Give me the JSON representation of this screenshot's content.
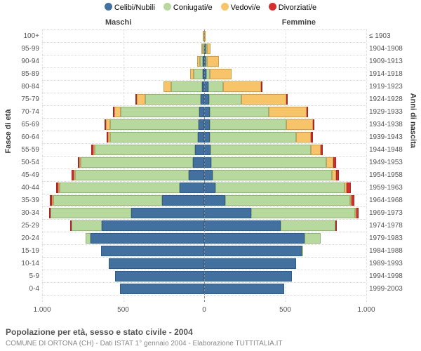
{
  "type": "population-pyramid",
  "legend": [
    {
      "label": "Celibi/Nubili",
      "color": "#42709f"
    },
    {
      "label": "Coniugati/e",
      "color": "#b7d99d"
    },
    {
      "label": "Vedovi/e",
      "color": "#f7c469"
    },
    {
      "label": "Divorziati/e",
      "color": "#d32f2f"
    }
  ],
  "header_male": "Maschi",
  "header_female": "Femmine",
  "ylabel_left": "Fasce di età",
  "ylabel_right": "Anni di nascita",
  "title": "Popolazione per età, sesso e stato civile - 2004",
  "subtitle": "COMUNE DI ORTONA (CH) - Dati ISTAT 1° gennaio 2004 - Elaborazione TUTTITALIA.IT",
  "x_max": 1000,
  "x_ticks": [
    1000,
    500,
    0,
    500,
    1000
  ],
  "x_tick_labels": [
    "1.000",
    "500",
    "0",
    "500",
    "1.000"
  ],
  "grid_positions": [
    0,
    0.25,
    0.5,
    0.75,
    1.0
  ],
  "colors": {
    "celibi": "#42709f",
    "coniugati": "#b7d99d",
    "vedovi": "#f7c469",
    "divorziati": "#d32f2f",
    "grid": "#e0e0e0",
    "bg": "#ffffff",
    "text": "#555555"
  },
  "rows": [
    {
      "age": "100+",
      "year": "≤ 1903",
      "m": {
        "cel": 0,
        "con": 0,
        "ved": 2,
        "div": 0
      },
      "f": {
        "cel": 0,
        "con": 0,
        "ved": 3,
        "div": 0
      }
    },
    {
      "age": "95-99",
      "year": "1904-1908",
      "m": {
        "cel": 0,
        "con": 2,
        "ved": 5,
        "div": 0
      },
      "f": {
        "cel": 2,
        "con": 1,
        "ved": 20,
        "div": 0
      }
    },
    {
      "age": "90-94",
      "year": "1909-1913",
      "m": {
        "cel": 3,
        "con": 18,
        "ved": 18,
        "div": 0
      },
      "f": {
        "cel": 5,
        "con": 8,
        "ved": 75,
        "div": 0
      }
    },
    {
      "age": "85-89",
      "year": "1914-1918",
      "m": {
        "cel": 8,
        "con": 55,
        "ved": 25,
        "div": 0
      },
      "f": {
        "cel": 12,
        "con": 23,
        "ved": 135,
        "div": 0
      }
    },
    {
      "age": "80-84",
      "year": "1919-1923",
      "m": {
        "cel": 15,
        "con": 190,
        "ved": 48,
        "div": 0
      },
      "f": {
        "cel": 25,
        "con": 90,
        "ved": 235,
        "div": 2
      }
    },
    {
      "age": "75-79",
      "year": "1924-1928",
      "m": {
        "cel": 22,
        "con": 340,
        "ved": 55,
        "div": 2
      },
      "f": {
        "cel": 30,
        "con": 200,
        "ved": 275,
        "div": 5
      }
    },
    {
      "age": "70-74",
      "year": "1929-1933",
      "m": {
        "cel": 30,
        "con": 485,
        "ved": 40,
        "div": 5
      },
      "f": {
        "cel": 35,
        "con": 365,
        "ved": 230,
        "div": 8
      }
    },
    {
      "age": "65-69",
      "year": "1934-1938",
      "m": {
        "cel": 35,
        "con": 545,
        "ved": 25,
        "div": 5
      },
      "f": {
        "cel": 35,
        "con": 470,
        "ved": 165,
        "div": 10
      }
    },
    {
      "age": "60-64",
      "year": "1939-1943",
      "m": {
        "cel": 40,
        "con": 540,
        "ved": 15,
        "div": 8
      },
      "f": {
        "cel": 35,
        "con": 530,
        "ved": 95,
        "div": 10
      }
    },
    {
      "age": "55-59",
      "year": "1944-1948",
      "m": {
        "cel": 55,
        "con": 620,
        "ved": 10,
        "div": 10
      },
      "f": {
        "cel": 40,
        "con": 620,
        "ved": 60,
        "div": 12
      }
    },
    {
      "age": "50-54",
      "year": "1949-1953",
      "m": {
        "cel": 70,
        "con": 690,
        "ved": 8,
        "div": 12
      },
      "f": {
        "cel": 45,
        "con": 710,
        "ved": 42,
        "div": 15
      }
    },
    {
      "age": "45-49",
      "year": "1954-1958",
      "m": {
        "cel": 95,
        "con": 700,
        "ved": 5,
        "div": 15
      },
      "f": {
        "cel": 50,
        "con": 740,
        "ved": 25,
        "div": 18
      }
    },
    {
      "age": "40-44",
      "year": "1959-1963",
      "m": {
        "cel": 150,
        "con": 740,
        "ved": 3,
        "div": 15
      },
      "f": {
        "cel": 70,
        "con": 795,
        "ved": 15,
        "div": 25
      }
    },
    {
      "age": "35-39",
      "year": "1964-1968",
      "m": {
        "cel": 260,
        "con": 670,
        "ved": 2,
        "div": 12
      },
      "f": {
        "cel": 130,
        "con": 770,
        "ved": 8,
        "div": 18
      }
    },
    {
      "age": "30-34",
      "year": "1969-1973",
      "m": {
        "cel": 450,
        "con": 500,
        "ved": 0,
        "div": 8
      },
      "f": {
        "cel": 290,
        "con": 640,
        "ved": 3,
        "div": 12
      }
    },
    {
      "age": "25-29",
      "year": "1974-1978",
      "m": {
        "cel": 630,
        "con": 190,
        "ved": 0,
        "div": 2
      },
      "f": {
        "cel": 470,
        "con": 340,
        "ved": 0,
        "div": 5
      }
    },
    {
      "age": "20-24",
      "year": "1979-1983",
      "m": {
        "cel": 700,
        "con": 30,
        "ved": 0,
        "div": 0
      },
      "f": {
        "cel": 620,
        "con": 100,
        "ved": 0,
        "div": 0
      }
    },
    {
      "age": "15-19",
      "year": "1984-1988",
      "m": {
        "cel": 635,
        "con": 0,
        "ved": 0,
        "div": 0
      },
      "f": {
        "cel": 600,
        "con": 8,
        "ved": 0,
        "div": 0
      }
    },
    {
      "age": "10-14",
      "year": "1989-1993",
      "m": {
        "cel": 590,
        "con": 0,
        "ved": 0,
        "div": 0
      },
      "f": {
        "cel": 565,
        "con": 0,
        "ved": 0,
        "div": 0
      }
    },
    {
      "age": "5-9",
      "year": "1994-1998",
      "m": {
        "cel": 550,
        "con": 0,
        "ved": 0,
        "div": 0
      },
      "f": {
        "cel": 540,
        "con": 0,
        "ved": 0,
        "div": 0
      }
    },
    {
      "age": "0-4",
      "year": "1999-2003",
      "m": {
        "cel": 520,
        "con": 0,
        "ved": 0,
        "div": 0
      },
      "f": {
        "cel": 495,
        "con": 0,
        "ved": 0,
        "div": 0
      }
    }
  ]
}
